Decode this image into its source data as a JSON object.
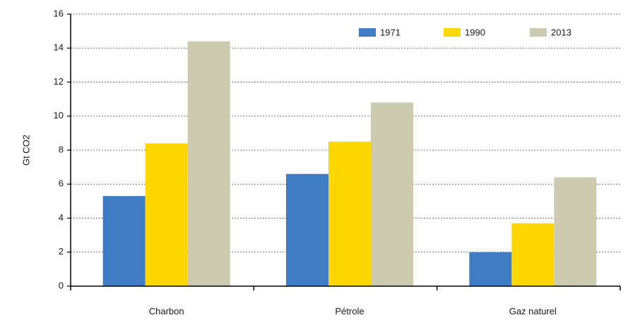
{
  "chart_data": {
    "type": "bar",
    "categories": [
      "Charbon",
      "Pétrole",
      "Gaz naturel"
    ],
    "series": [
      {
        "name": "1971",
        "values": [
          5.3,
          6.6,
          2.0
        ],
        "color": "#3f7cc4"
      },
      {
        "name": "1990",
        "values": [
          8.4,
          8.5,
          3.7
        ],
        "color": "#ffd700"
      },
      {
        "name": "2013",
        "values": [
          14.4,
          10.8,
          6.4
        ],
        "color": "#cccbb0"
      }
    ],
    "ylabel": "Gt CO2",
    "xlabel": "",
    "ylim": [
      0,
      16
    ],
    "yticks": [
      0,
      2,
      4,
      6,
      8,
      10,
      12,
      14,
      16
    ],
    "grid": true,
    "legend_position": "top-right"
  }
}
